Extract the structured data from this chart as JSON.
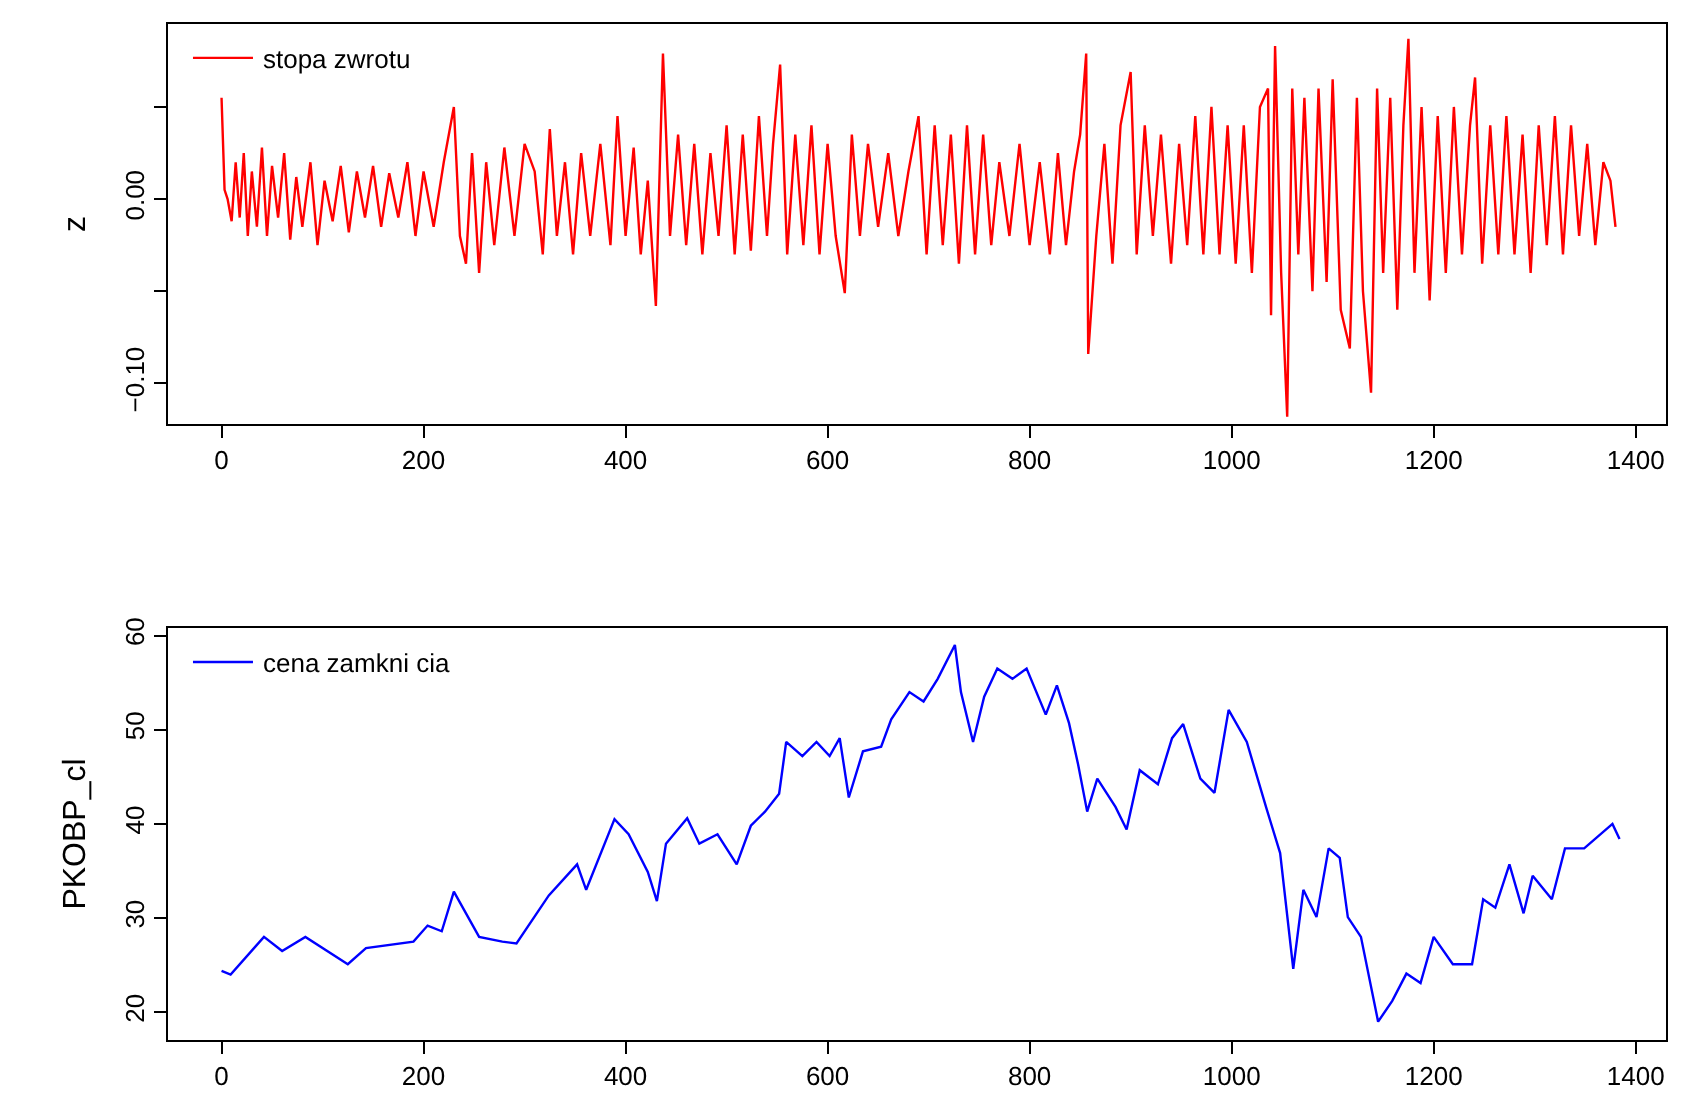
{
  "chart_data": [
    {
      "type": "line",
      "ylabel": "z",
      "legend": "top left",
      "grid": false,
      "line_style": "solid",
      "xlim": [
        -53,
        1430
      ],
      "xticks": [
        0,
        200,
        400,
        600,
        800,
        1000,
        1200,
        1400
      ],
      "ylim": [
        -0.122,
        0.095
      ],
      "yticks": [
        {
          "value": -0.1,
          "label": "−0.10"
        },
        {
          "value": -0.05,
          "label": null
        },
        {
          "value": 0,
          "label": "0.00"
        },
        {
          "value": 0.05,
          "label": null
        }
      ],
      "x": [
        0,
        3,
        6,
        10,
        14,
        18,
        22,
        26,
        30,
        35,
        40,
        45,
        50,
        56,
        62,
        68,
        74,
        80,
        88,
        95,
        102,
        110,
        118,
        126,
        134,
        142,
        150,
        158,
        166,
        175,
        184,
        192,
        200,
        210,
        220,
        230,
        236,
        242,
        248,
        255,
        262,
        270,
        280,
        290,
        300,
        310,
        318,
        325,
        332,
        340,
        348,
        356,
        365,
        375,
        385,
        392,
        400,
        408,
        415,
        422,
        430,
        437,
        444,
        452,
        460,
        468,
        476,
        484,
        492,
        500,
        508,
        516,
        524,
        532,
        540,
        546,
        553,
        560,
        568,
        576,
        584,
        592,
        600,
        608,
        617,
        624,
        632,
        640,
        650,
        660,
        670,
        680,
        690,
        698,
        706,
        714,
        722,
        730,
        738,
        746,
        754,
        762,
        770,
        780,
        790,
        800,
        810,
        820,
        828,
        836,
        844,
        850,
        856,
        858,
        866,
        874,
        882,
        890,
        900,
        906,
        914,
        922,
        930,
        940,
        948,
        956,
        964,
        972,
        980,
        988,
        996,
        1004,
        1012,
        1020,
        1028,
        1036,
        1039,
        1043,
        1049,
        1055,
        1060,
        1066,
        1072,
        1080,
        1086,
        1094,
        1100,
        1108,
        1117,
        1124,
        1130,
        1138,
        1144,
        1150,
        1157,
        1164,
        1170,
        1175,
        1181,
        1188,
        1196,
        1204,
        1212,
        1220,
        1228,
        1236,
        1241,
        1248,
        1256,
        1264,
        1272,
        1280,
        1288,
        1296,
        1304,
        1312,
        1320,
        1328,
        1336,
        1344,
        1352,
        1360,
        1368,
        1375,
        1380
      ],
      "series": [
        {
          "name": "stopa zwrotu",
          "color": "#ff0000",
          "values": [
            0.055,
            0.005,
            0.0,
            -0.012,
            0.02,
            -0.01,
            0.025,
            -0.02,
            0.015,
            -0.015,
            0.028,
            -0.02,
            0.018,
            -0.01,
            0.025,
            -0.022,
            0.012,
            -0.015,
            0.02,
            -0.025,
            0.01,
            -0.012,
            0.018,
            -0.018,
            0.015,
            -0.01,
            0.018,
            -0.015,
            0.014,
            -0.01,
            0.02,
            -0.02,
            0.015,
            -0.015,
            0.02,
            0.05,
            -0.02,
            -0.035,
            0.025,
            -0.04,
            0.02,
            -0.025,
            0.028,
            -0.02,
            0.03,
            0.015,
            -0.03,
            0.038,
            -0.02,
            0.02,
            -0.03,
            0.025,
            -0.02,
            0.03,
            -0.025,
            0.045,
            -0.02,
            0.028,
            -0.03,
            0.01,
            -0.058,
            0.079,
            -0.02,
            0.035,
            -0.025,
            0.03,
            -0.03,
            0.025,
            -0.02,
            0.04,
            -0.03,
            0.035,
            -0.028,
            0.045,
            -0.02,
            0.03,
            0.073,
            -0.03,
            0.035,
            -0.025,
            0.04,
            -0.03,
            0.03,
            -0.02,
            -0.051,
            0.035,
            -0.02,
            0.03,
            -0.015,
            0.025,
            -0.02,
            0.015,
            0.045,
            -0.03,
            0.04,
            -0.025,
            0.035,
            -0.035,
            0.04,
            -0.03,
            0.035,
            -0.025,
            0.02,
            -0.02,
            0.03,
            -0.025,
            0.02,
            -0.03,
            0.025,
            -0.025,
            0.015,
            0.035,
            0.079,
            -0.084,
            -0.02,
            0.03,
            -0.035,
            0.04,
            0.069,
            -0.03,
            0.04,
            -0.02,
            0.035,
            -0.035,
            0.03,
            -0.025,
            0.045,
            -0.03,
            0.05,
            -0.03,
            0.04,
            -0.035,
            0.04,
            -0.04,
            0.05,
            0.06,
            -0.063,
            0.083,
            -0.04,
            -0.118,
            0.06,
            -0.03,
            0.055,
            -0.05,
            0.06,
            -0.045,
            0.065,
            -0.06,
            -0.081,
            0.055,
            -0.05,
            -0.105,
            0.06,
            -0.04,
            0.055,
            -0.06,
            0.04,
            0.087,
            -0.04,
            0.05,
            -0.055,
            0.045,
            -0.04,
            0.05,
            -0.03,
            0.04,
            0.066,
            -0.035,
            0.04,
            -0.03,
            0.045,
            -0.03,
            0.035,
            -0.04,
            0.04,
            -0.025,
            0.045,
            -0.03,
            0.04,
            -0.02,
            0.03,
            -0.025,
            0.02,
            0.01,
            -0.015
          ]
        }
      ]
    },
    {
      "type": "line",
      "ylabel": "PKOBP_cl",
      "legend": "top left",
      "grid": false,
      "line_style": "solid",
      "xlim": [
        -53,
        1430
      ],
      "xticks": [
        0,
        200,
        400,
        600,
        800,
        1000,
        1200,
        1400
      ],
      "ylim": [
        17.05,
        60.8
      ],
      "yticks": [
        20,
        30,
        40,
        50,
        60
      ],
      "x": [
        0,
        9,
        42,
        60,
        83,
        125,
        143,
        190,
        204,
        218,
        230,
        255,
        278,
        292,
        324,
        352,
        361,
        389,
        403,
        422,
        431,
        440,
        461,
        473,
        491,
        510,
        524,
        538,
        552,
        559,
        575,
        589,
        602,
        612,
        621,
        635,
        653,
        663,
        681,
        695,
        709,
        726,
        732,
        744,
        755,
        768,
        783,
        797,
        816,
        827,
        839,
        848,
        857,
        867,
        885,
        896,
        909,
        927,
        941,
        952,
        969,
        983,
        997,
        1015,
        1034,
        1048,
        1061,
        1071,
        1084,
        1096,
        1107,
        1115,
        1128,
        1145,
        1159,
        1173,
        1187,
        1200,
        1219,
        1238,
        1249,
        1261,
        1275,
        1289,
        1298,
        1317,
        1330,
        1349,
        1377,
        1384
      ],
      "series": [
        {
          "name": "cena zamkni cia",
          "color": "#0000ff",
          "values": [
            24.4,
            24.0,
            28.0,
            26.5,
            28.0,
            25.1,
            26.8,
            27.5,
            29.2,
            28.6,
            32.8,
            28.0,
            27.5,
            27.3,
            32.4,
            35.7,
            33.0,
            40.5,
            38.9,
            34.9,
            31.8,
            37.9,
            40.6,
            37.9,
            38.9,
            35.7,
            39.8,
            41.3,
            43.2,
            48.7,
            47.2,
            48.7,
            47.2,
            49.1,
            42.8,
            47.7,
            48.2,
            51.1,
            54.0,
            53.0,
            55.4,
            59.0,
            54.0,
            48.7,
            53.5,
            56.5,
            55.4,
            56.5,
            51.6,
            54.7,
            50.7,
            46.3,
            41.3,
            44.8,
            41.8,
            39.4,
            45.7,
            44.2,
            49.1,
            50.6,
            44.8,
            43.3,
            52.1,
            48.7,
            41.8,
            36.9,
            24.6,
            33.0,
            30.1,
            37.4,
            36.4,
            30.1,
            28.0,
            19.0,
            21.2,
            24.1,
            23.1,
            28.0,
            25.1,
            25.1,
            32.0,
            31.1,
            35.7,
            30.5,
            34.5,
            32.0,
            37.4,
            37.4,
            40.0,
            38.4
          ]
        }
      ]
    }
  ]
}
